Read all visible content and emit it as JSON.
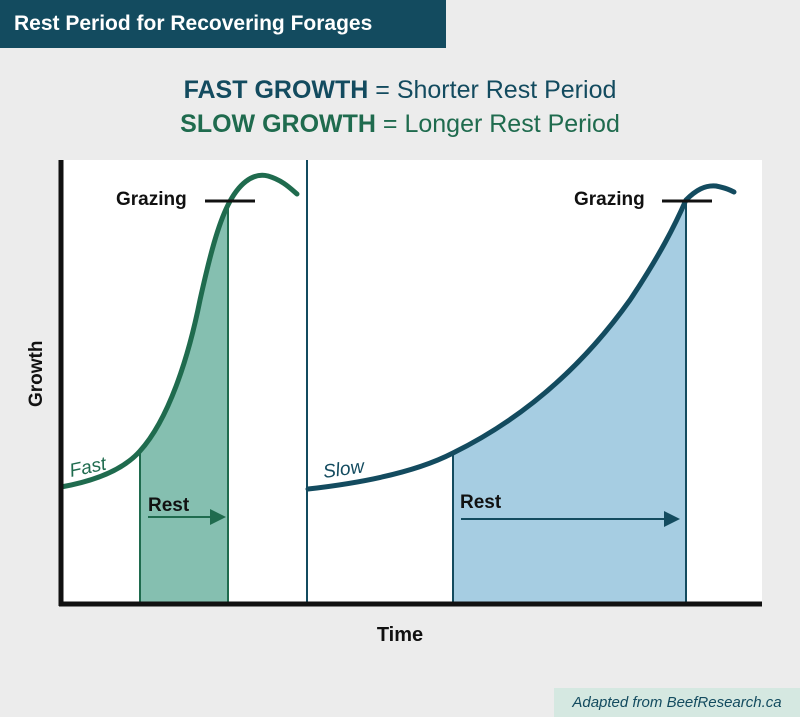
{
  "title": "Rest Period for Recovering Forages",
  "headline": {
    "line1_keyword": "FAST GROWTH",
    "line1_rest": "= Shorter Rest Period",
    "line2_keyword": "SLOW GROWTH",
    "line2_rest": "= Longer Rest Period"
  },
  "axes": {
    "ylabel": "Growth",
    "xlabel": "Time"
  },
  "panels": {
    "fast": {
      "curve_label": "Fast",
      "grazing_label": "Grazing",
      "rest_label": "Rest"
    },
    "slow": {
      "curve_label": "Slow",
      "grazing_label": "Grazing",
      "rest_label": "Rest"
    }
  },
  "credit": "Adapted from BeefResearch.ca",
  "colors": {
    "dark_teal": "#134b5f",
    "green": "#1f6b4e",
    "fast_fill": "#85bfb0",
    "slow_fill": "#a6cde2",
    "credit_bg": "#d5e8e1"
  }
}
